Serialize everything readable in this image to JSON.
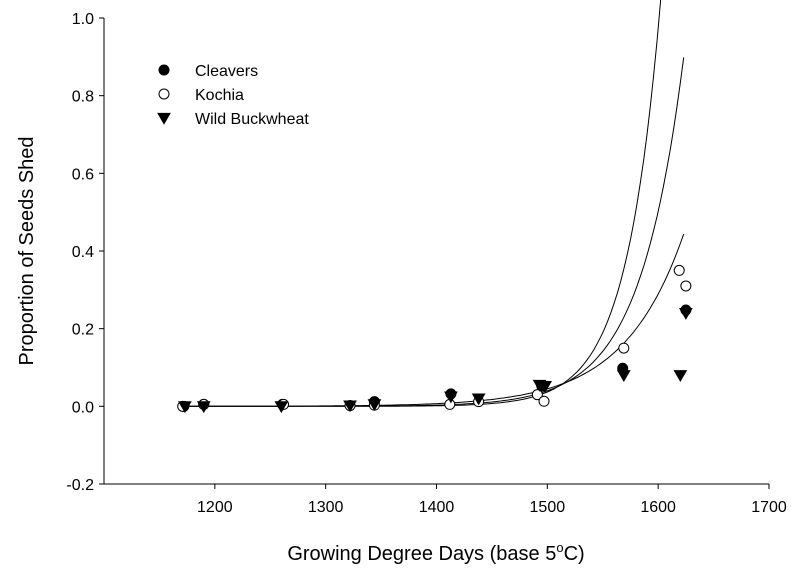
{
  "chart_data": {
    "type": "scatter",
    "title": "",
    "xlabel_prefix": "Growing Degree Days (base 5",
    "xlabel_sup": "o",
    "xlabel_suffix": "C)",
    "ylabel": "Proportion of Seeds Shed",
    "xlim": [
      1100,
      1700
    ],
    "ylim": [
      -0.2,
      1.0
    ],
    "x_ticks": [
      1200,
      1300,
      1400,
      1500,
      1600,
      1700
    ],
    "x_tick_labels": [
      "1200",
      "1300",
      "1400",
      "1500",
      "1600",
      "1700"
    ],
    "y_ticks": [
      -0.2,
      0.0,
      0.2,
      0.4,
      0.6,
      0.8,
      1.0
    ],
    "y_tick_labels": [
      "-0.2",
      "0.0",
      "0.2",
      "0.4",
      "0.6",
      "0.8",
      "1.0"
    ],
    "grid": false,
    "legend_position": "top-left",
    "series": [
      {
        "name": "Cleavers",
        "marker": "filled-circle",
        "color": "#000000",
        "points": [
          {
            "x": 1172,
            "y": 0.0
          },
          {
            "x": 1190,
            "y": 0.005
          },
          {
            "x": 1261,
            "y": 0.005
          },
          {
            "x": 1344,
            "y": 0.012
          },
          {
            "x": 1413,
            "y": 0.032
          },
          {
            "x": 1495,
            "y": 0.052
          },
          {
            "x": 1568,
            "y": 0.098
          },
          {
            "x": 1625,
            "y": 0.248
          }
        ],
        "fit": {
          "a": 0.04,
          "b": 0.0253
        }
      },
      {
        "name": "Kochia",
        "marker": "open-circle",
        "color": "#000000",
        "points": [
          {
            "x": 1171,
            "y": 0.0
          },
          {
            "x": 1190,
            "y": 0.005
          },
          {
            "x": 1262,
            "y": 0.005
          },
          {
            "x": 1322,
            "y": 0.002
          },
          {
            "x": 1344,
            "y": 0.003
          },
          {
            "x": 1412,
            "y": 0.005
          },
          {
            "x": 1438,
            "y": 0.012
          },
          {
            "x": 1491,
            "y": 0.03
          },
          {
            "x": 1497,
            "y": 0.013
          },
          {
            "x": 1569,
            "y": 0.15
          },
          {
            "x": 1619,
            "y": 0.35
          },
          {
            "x": 1625,
            "y": 0.31
          }
        ],
        "fit": {
          "a": 0.037,
          "b": 0.0327
        }
      },
      {
        "name": "Wild Buckwheat",
        "marker": "filled-triangle-down",
        "color": "#000000",
        "points": [
          {
            "x": 1173,
            "y": 0.0
          },
          {
            "x": 1190,
            "y": 0.0
          },
          {
            "x": 1260,
            "y": 0.0
          },
          {
            "x": 1322,
            "y": 0.002
          },
          {
            "x": 1344,
            "y": 0.005
          },
          {
            "x": 1413,
            "y": 0.025
          },
          {
            "x": 1438,
            "y": 0.02
          },
          {
            "x": 1493,
            "y": 0.055
          },
          {
            "x": 1498,
            "y": 0.052
          },
          {
            "x": 1569,
            "y": 0.08
          },
          {
            "x": 1620,
            "y": 0.08
          },
          {
            "x": 1625,
            "y": 0.24
          }
        ],
        "fit": {
          "a": 0.045,
          "b": 0.0186
        }
      }
    ],
    "fit_x_range": [
      1170,
      1625
    ],
    "fit_x0": 1500
  }
}
